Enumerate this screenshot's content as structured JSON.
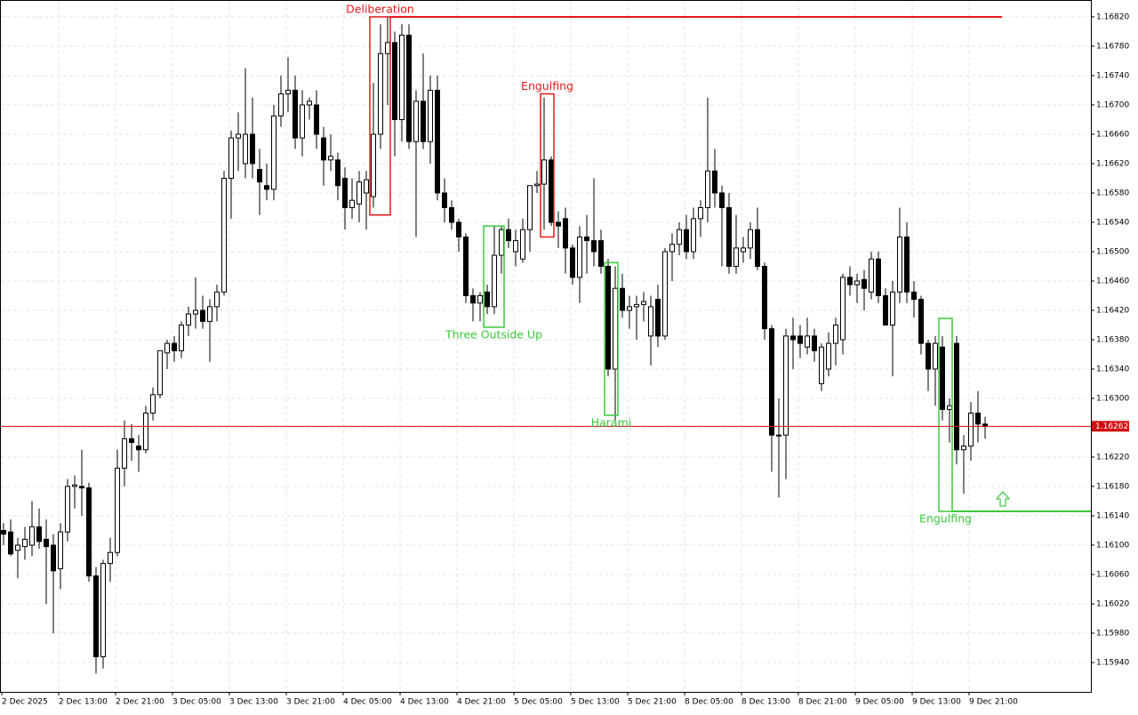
{
  "chart_data": {
    "type": "candlestick",
    "categories": [
      "2 Dec 2025",
      null,
      null,
      null,
      null,
      null,
      null,
      null,
      "2 Dec 13:00",
      null,
      null,
      null,
      null,
      null,
      null,
      null,
      "2 Dec 21:00",
      null,
      null,
      null,
      null,
      null,
      null,
      null,
      "3 Dec 05:00",
      null,
      null,
      null,
      null,
      null,
      null,
      null,
      "3 Dec 13:00",
      null,
      null,
      null,
      null,
      null,
      null,
      null,
      "3 Dec 21:00",
      null,
      null,
      null,
      null,
      null,
      null,
      null,
      "4 Dec 05:00",
      null,
      null,
      null,
      null,
      null,
      null,
      null,
      "4 Dec 13:00",
      null,
      null,
      null,
      null,
      null,
      null,
      null,
      "4 Dec 21:00",
      null,
      null,
      null,
      null,
      null,
      null,
      null,
      "5 Dec 05:00",
      null,
      null,
      null,
      null,
      null,
      null,
      null,
      "5 Dec 13:00",
      null,
      null,
      null,
      null,
      null,
      null,
      null,
      "5 Dec 21:00",
      null,
      null,
      null,
      null,
      null,
      null,
      null,
      "8 Dec 05:00",
      null,
      null,
      null,
      null,
      null,
      null,
      null,
      "8 Dec 13:00",
      null,
      null,
      null,
      null,
      null,
      null,
      null,
      "8 Dec 21:00",
      null,
      null,
      null,
      null,
      null,
      null,
      null,
      "9 Dec 05:00",
      null,
      null,
      null,
      null,
      null,
      null,
      null,
      "9 Dec 13:00",
      null,
      null,
      null,
      null,
      null,
      null,
      null,
      "9 Dec 21:00",
      null,
      null
    ],
    "open": [
      1.1612,
      1.16118,
      1.16093,
      1.16098,
      1.161,
      1.16125,
      1.16108,
      1.161,
      1.16068,
      1.16118,
      1.1618,
      1.1618,
      1.16178,
      1.16058,
      1.15948,
      1.16075,
      1.1609,
      1.16205,
      1.16245,
      1.16235,
      1.1623,
      1.1628,
      1.16305,
      1.16362,
      1.16375,
      1.16365,
      1.164,
      1.16415,
      1.1642,
      1.16405,
      1.16425,
      1.16445,
      1.166,
      1.16655,
      1.1662,
      1.1666,
      1.16612,
      1.1659,
      1.16585,
      1.16685,
      1.16715,
      1.1672,
      1.16655,
      1.167,
      1.167,
      1.16655,
      1.16625,
      1.16625,
      1.166,
      1.1656,
      1.16565,
      1.1658,
      1.16575,
      1.1666,
      1.1677,
      1.16785,
      1.1668,
      1.16795,
      1.1665,
      1.16705,
      1.1665,
      1.1672,
      1.1658,
      1.1656,
      1.1654,
      1.1652,
      1.1644,
      1.1643,
      1.16445,
      1.16425,
      1.16495,
      1.1653,
      1.165,
      1.1649,
      1.1653,
      1.1659,
      1.16592,
      1.16625,
      1.1654,
      1.16545,
      1.16505,
      1.16465,
      1.1652,
      1.16515,
      1.16515,
      1.1648,
      1.1634,
      1.1645,
      1.1642,
      1.16425,
      1.16428,
      1.16385,
      1.16435,
      1.16385,
      1.165,
      1.1651,
      1.1653,
      1.165,
      1.16545,
      1.1656,
      1.1661,
      1.1658,
      1.1656,
      1.1648,
      1.165,
      1.16505,
      1.1653,
      1.1648,
      1.16395,
      1.1625,
      1.1625,
      1.16385,
      1.16385,
      1.1637,
      1.16385,
      1.1632,
      1.1634,
      1.16375,
      1.1638,
      1.16465,
      1.16455,
      1.16462,
      1.16445,
      1.1649,
      1.1644,
      1.164,
      1.16445,
      1.1652,
      1.16445,
      1.16435,
      1.16375,
      1.1634,
      1.1637,
      1.16285,
      1.16375,
      1.1623,
      1.16235,
      1.1628,
      1.16265
    ],
    "high": [
      1.1613,
      1.16135,
      1.1611,
      1.16125,
      1.1616,
      1.1615,
      1.16135,
      1.16115,
      1.1613,
      1.1619,
      1.16195,
      1.1623,
      1.16185,
      1.1607,
      1.1608,
      1.1611,
      1.1623,
      1.1627,
      1.16265,
      1.1625,
      1.1629,
      1.16315,
      1.16365,
      1.1638,
      1.16385,
      1.16405,
      1.16425,
      1.16465,
      1.1644,
      1.16435,
      1.16455,
      1.1661,
      1.16665,
      1.1669,
      1.1675,
      1.1671,
      1.1664,
      1.1662,
      1.167,
      1.1674,
      1.16765,
      1.1674,
      1.1672,
      1.1671,
      1.1672,
      1.1667,
      1.1666,
      1.16635,
      1.16615,
      1.166,
      1.1661,
      1.1661,
      1.1673,
      1.1681,
      1.1682,
      1.168,
      1.1681,
      1.1681,
      1.1672,
      1.1677,
      1.1674,
      1.1674,
      1.166,
      1.1657,
      1.16545,
      1.16525,
      1.1645,
      1.16445,
      1.16455,
      1.16535,
      1.16535,
      1.16545,
      1.1653,
      1.16545,
      1.1659,
      1.1661,
      1.1671,
      1.1663,
      1.16555,
      1.1656,
      1.1651,
      1.16535,
      1.1655,
      1.166,
      1.1653,
      1.1649,
      1.1648,
      1.1647,
      1.1644,
      1.1644,
      1.16445,
      1.1644,
      1.16455,
      1.16505,
      1.16525,
      1.1654,
      1.1655,
      1.1656,
      1.1657,
      1.1671,
      1.1664,
      1.1659,
      1.1658,
      1.1655,
      1.1652,
      1.1654,
      1.1656,
      1.16485,
      1.164,
      1.163,
      1.16395,
      1.1641,
      1.164,
      1.1641,
      1.16395,
      1.16375,
      1.1639,
      1.1641,
      1.1647,
      1.1648,
      1.1647,
      1.16475,
      1.165,
      1.165,
      1.1645,
      1.1646,
      1.1656,
      1.1654,
      1.1646,
      1.1644,
      1.1638,
      1.16385,
      1.16385,
      1.163,
      1.16385,
      1.1625,
      1.16295,
      1.1631,
      1.16275
    ],
    "low": [
      1.161,
      1.16085,
      1.16055,
      1.1608,
      1.16085,
      1.16095,
      1.1602,
      1.1598,
      1.1604,
      1.16105,
      1.1615,
      1.1614,
      1.1605,
      1.15925,
      1.15932,
      1.1605,
      1.16085,
      1.1618,
      1.16215,
      1.162,
      1.16225,
      1.1627,
      1.163,
      1.1634,
      1.1635,
      1.16355,
      1.16385,
      1.16395,
      1.16395,
      1.1635,
      1.16405,
      1.1644,
      1.16545,
      1.1661,
      1.166,
      1.166,
      1.1655,
      1.1657,
      1.1657,
      1.1667,
      1.1669,
      1.1664,
      1.1663,
      1.1668,
      1.1664,
      1.1659,
      1.1661,
      1.1657,
      1.1653,
      1.16545,
      1.1654,
      1.1653,
      1.1656,
      1.1664,
      1.167,
      1.1663,
      1.1665,
      1.1664,
      1.1652,
      1.1664,
      1.1662,
      1.1657,
      1.1654,
      1.1653,
      1.165,
      1.1643,
      1.16405,
      1.16405,
      1.16415,
      1.16415,
      1.1647,
      1.16505,
      1.1648,
      1.16485,
      1.165,
      1.1658,
      1.1653,
      1.16535,
      1.16505,
      1.1647,
      1.16455,
      1.1643,
      1.1647,
      1.1648,
      1.1647,
      1.1633,
      1.1627,
      1.1641,
      1.16395,
      1.1638,
      1.16405,
      1.16345,
      1.1637,
      1.1638,
      1.1646,
      1.16495,
      1.1649,
      1.1649,
      1.1652,
      1.1654,
      1.1656,
      1.1648,
      1.1647,
      1.1647,
      1.16485,
      1.1649,
      1.16475,
      1.1638,
      1.162,
      1.16165,
      1.1619,
      1.1634,
      1.16355,
      1.1636,
      1.1635,
      1.1631,
      1.1633,
      1.16345,
      1.1636,
      1.1644,
      1.1643,
      1.1642,
      1.16435,
      1.1643,
      1.164,
      1.1633,
      1.1643,
      1.1643,
      1.1641,
      1.1636,
      1.1631,
      1.1629,
      1.1627,
      1.1624,
      1.1621,
      1.1617,
      1.16215,
      1.1624,
      1.16245
    ],
    "close": [
      1.16115,
      1.16088,
      1.161,
      1.16108,
      1.16125,
      1.16105,
      1.16098,
      1.16065,
      1.16118,
      1.1618,
      1.16182,
      1.16178,
      1.16058,
      1.15948,
      1.16075,
      1.1609,
      1.16205,
      1.16245,
      1.1624,
      1.1623,
      1.1628,
      1.16305,
      1.16365,
      1.16375,
      1.16365,
      1.164,
      1.16415,
      1.1642,
      1.16405,
      1.16425,
      1.16445,
      1.166,
      1.16655,
      1.1666,
      1.1666,
      1.1662,
      1.16595,
      1.16585,
      1.16685,
      1.16715,
      1.1672,
      1.16655,
      1.167,
      1.16705,
      1.1666,
      1.16625,
      1.1663,
      1.1659,
      1.1656,
      1.1657,
      1.16595,
      1.16598,
      1.1666,
      1.1677,
      1.16785,
      1.1668,
      1.16795,
      1.1665,
      1.16705,
      1.1665,
      1.1672,
      1.1658,
      1.1656,
      1.1654,
      1.1652,
      1.1644,
      1.1643,
      1.1644,
      1.16425,
      1.16495,
      1.1653,
      1.16515,
      1.16515,
      1.1653,
      1.1659,
      1.16592,
      1.16625,
      1.1654,
      1.16535,
      1.16505,
      1.16465,
      1.1652,
      1.16515,
      1.165,
      1.1648,
      1.1634,
      1.1645,
      1.1642,
      1.16425,
      1.16428,
      1.16432,
      1.16425,
      1.16385,
      1.165,
      1.1651,
      1.1653,
      1.165,
      1.16545,
      1.1656,
      1.1661,
      1.1658,
      1.1656,
      1.1648,
      1.16505,
      1.16505,
      1.1653,
      1.1648,
      1.16395,
      1.1625,
      1.1625,
      1.16385,
      1.1638,
      1.16375,
      1.16385,
      1.16365,
      1.1637,
      1.16375,
      1.164,
      1.16465,
      1.16455,
      1.1646,
      1.1645,
      1.1649,
      1.1644,
      1.164,
      1.16445,
      1.1652,
      1.16445,
      1.16435,
      1.16375,
      1.1634,
      1.16375,
      1.16285,
      1.1629,
      1.1623,
      1.16235,
      1.1628,
      1.16265,
      1.16262
    ],
    "ylim": [
      1.159,
      1.16843
    ],
    "yticks": [
      {
        "value": 1.1594,
        "label": "1.15940"
      },
      {
        "value": 1.1598,
        "label": "1.15980"
      },
      {
        "value": 1.1602,
        "label": "1.16020"
      },
      {
        "value": 1.1606,
        "label": "1.16060"
      },
      {
        "value": 1.161,
        "label": "1.16100"
      },
      {
        "value": 1.1614,
        "label": "1.16140"
      },
      {
        "value": 1.1618,
        "label": "1.16180"
      },
      {
        "value": 1.1622,
        "label": "1.16220"
      },
      {
        "value": 1.1626,
        "label": "1.16260"
      },
      {
        "value": 1.163,
        "label": "1.16300"
      },
      {
        "value": 1.1634,
        "label": "1.16340"
      },
      {
        "value": 1.1638,
        "label": "1.16380"
      },
      {
        "value": 1.1642,
        "label": "1.16420"
      },
      {
        "value": 1.1646,
        "label": "1.16460"
      },
      {
        "value": 1.165,
        "label": "1.16500"
      },
      {
        "value": 1.1654,
        "label": "1.16540"
      },
      {
        "value": 1.1658,
        "label": "1.16580"
      },
      {
        "value": 1.1662,
        "label": "1.16620"
      },
      {
        "value": 1.1666,
        "label": "1.16660"
      },
      {
        "value": 1.167,
        "label": "1.16700"
      },
      {
        "value": 1.1674,
        "label": "1.16740"
      },
      {
        "value": 1.1678,
        "label": "1.16780"
      },
      {
        "value": 1.1682,
        "label": "1.16820"
      }
    ],
    "grid": true,
    "bid": 1.16262,
    "bid_color": "#d01010",
    "patterns": [
      {
        "label": "Deliberation",
        "direction": "bearish",
        "color": "#e31a1c",
        "from": 52,
        "to": 54,
        "top": 1.1682,
        "bottom": 1.1655,
        "level": 1.1682,
        "level_end": 140.4
      },
      {
        "label": "Engulfing",
        "direction": "bearish",
        "color": "#e31a1c",
        "from": 76,
        "to": 77,
        "top": 1.16715,
        "bottom": 1.1652
      },
      {
        "label": "Three Outside Up",
        "direction": "bullish",
        "color": "#3cc83c",
        "from": 68,
        "to": 70,
        "top": 1.16535,
        "bottom": 1.16397
      },
      {
        "label": "Harami",
        "direction": "bullish",
        "color": "#3cc83c",
        "from": 85,
        "to": 86,
        "top": 1.16485,
        "bottom": 1.16277
      },
      {
        "label": "Engulfing",
        "direction": "bullish",
        "color": "#3cc83c",
        "from": 132,
        "to": 133,
        "top": 1.16409,
        "bottom": 1.16146,
        "level": 1.16146,
        "level_end": 160,
        "signal": "up"
      }
    ]
  }
}
